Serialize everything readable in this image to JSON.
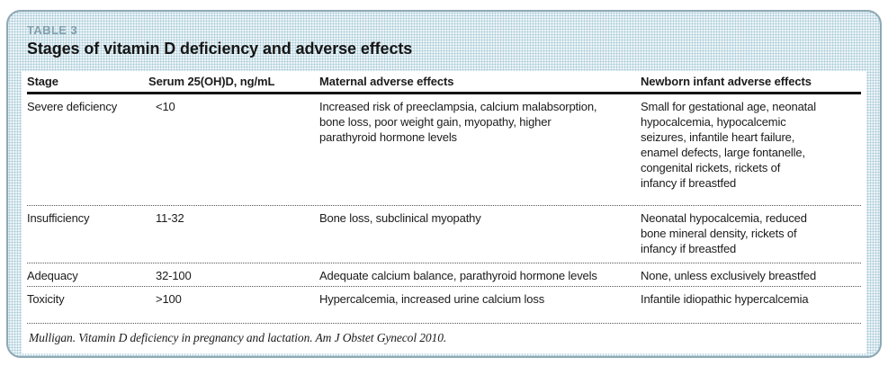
{
  "table": {
    "label": "TABLE 3",
    "title": "Stages of vitamin D deficiency and adverse effects",
    "columns": [
      "Stage",
      "Serum 25(OH)D, ng/mL",
      "Maternal adverse effects",
      "Newborn infant adverse effects"
    ],
    "rows": [
      {
        "stage": "Severe deficiency",
        "serum": "<10",
        "maternal": "Increased risk of preeclampsia, calcium malabsorption,\nbone loss, poor weight gain, myopathy, higher\nparathyroid hormone levels",
        "newborn": "Small for gestational age, neonatal\nhypocalcemia, hypocalcemic\nseizures, infantile heart failure,\nenamel defects, large fontanelle,\ncongenital rickets, rickets of\ninfancy if breastfed"
      },
      {
        "stage": "Insufficiency",
        "serum": "11-32",
        "maternal": "Bone loss, subclinical myopathy",
        "newborn": "Neonatal hypocalcemia, reduced\nbone mineral density, rickets of\ninfancy if breastfed"
      },
      {
        "stage": "Adequacy",
        "serum": "32-100",
        "maternal": "Adequate calcium balance, parathyroid hormone levels",
        "newborn": "None, unless exclusively breastfed"
      },
      {
        "stage": "Toxicity",
        "serum": ">100",
        "maternal": "Hypercalcemia, increased urine calcium loss",
        "newborn": "Infantile idiopathic hypercalcemia"
      }
    ],
    "citation": "Mulligan. Vitamin D deficiency in pregnancy and lactation. Am J Obstet Gynecol 2010.",
    "colors": {
      "band_dot_blue": "#a9cbd9",
      "card_border": "#8ea9b4",
      "label_blue": "#84a0ae",
      "text": "#1b1b1b"
    }
  }
}
